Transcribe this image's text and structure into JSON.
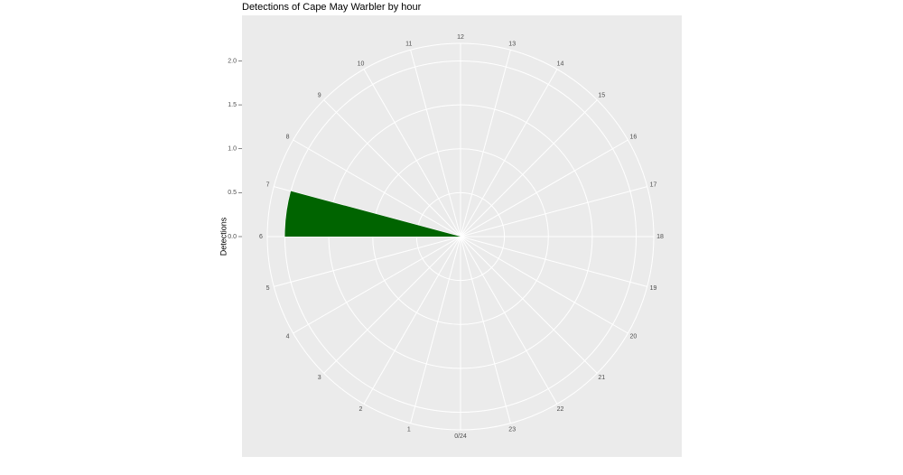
{
  "chart_data": {
    "type": "polar-bar",
    "title": "Detections of Cape May Warbler by hour",
    "y_label": "Detections",
    "categories": [
      0,
      1,
      2,
      3,
      4,
      5,
      6,
      7,
      8,
      9,
      10,
      11,
      12,
      13,
      14,
      15,
      16,
      17,
      18,
      19,
      20,
      21,
      22,
      23
    ],
    "values": [
      0,
      0,
      0,
      0,
      0,
      0,
      2,
      0,
      0,
      0,
      0,
      0,
      0,
      0,
      0,
      0,
      0,
      0,
      0,
      0,
      0,
      0,
      0,
      0
    ],
    "color": "#006400",
    "xlim": [
      0,
      24
    ],
    "xticks": [
      {
        "value": 0,
        "label": "0/24"
      },
      1,
      2,
      3,
      4,
      5,
      6,
      7,
      8,
      9,
      10,
      11,
      12,
      13,
      14,
      15,
      16,
      17,
      18,
      19,
      20,
      21,
      22,
      23
    ],
    "ylim": [
      0,
      2.2
    ],
    "yticks": [
      {
        "value": 0,
        "label": "0.0"
      },
      {
        "value": 0.5,
        "label": "0.5"
      },
      {
        "value": 1,
        "label": "1.0"
      },
      {
        "value": 1.5,
        "label": "1.5"
      },
      {
        "value": 2,
        "label": "2.0"
      }
    ],
    "grid": true
  }
}
